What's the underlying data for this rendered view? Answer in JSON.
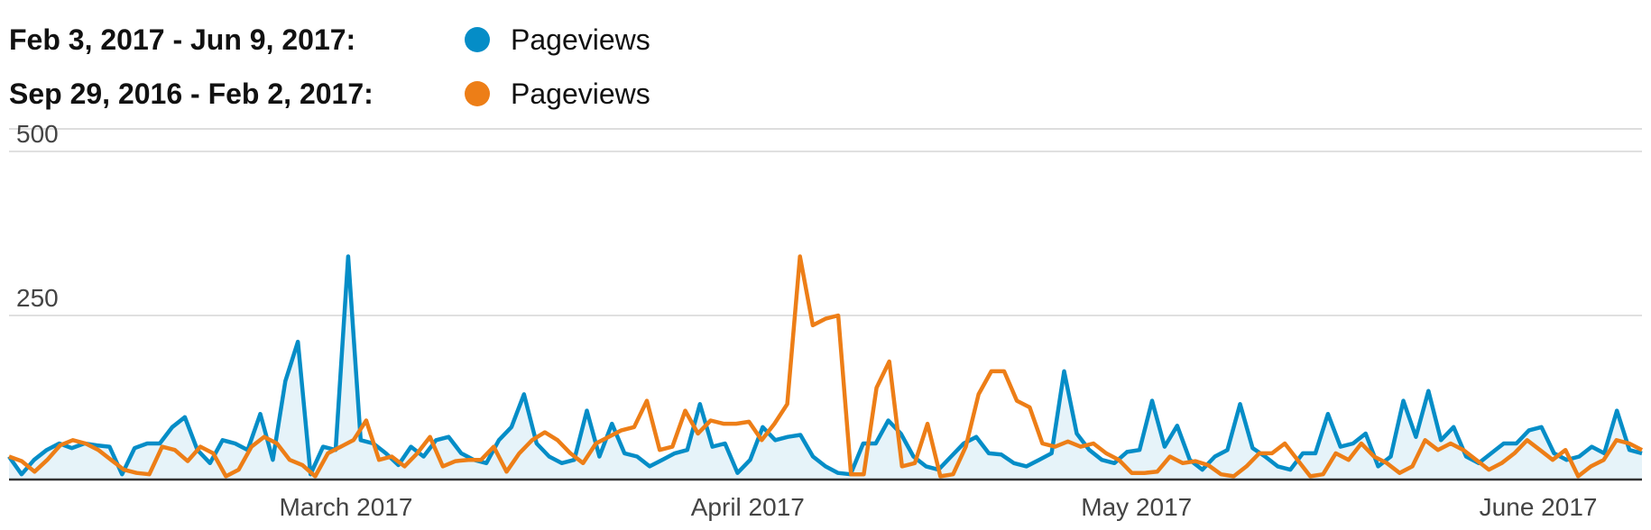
{
  "legend": {
    "rows": [
      {
        "range": "Feb 3, 2017 - Jun 9, 2017:",
        "series": "Pageviews",
        "color": "#058dc7"
      },
      {
        "range": "Sep 29, 2016 - Feb 2, 2017:",
        "series": "Pageviews",
        "color": "#ed7e17"
      }
    ]
  },
  "chart_data": {
    "type": "line",
    "y_ticks": [
      "500",
      "250"
    ],
    "ylim": [
      0,
      500
    ],
    "x_labels": [
      "March 2017",
      "April 2017",
      "May 2017",
      "June 2017"
    ],
    "x_label_dates": [
      "2017-03-01",
      "2017-04-01",
      "2017-05-01",
      "2017-06-01"
    ],
    "x_range": [
      "2017-02-03",
      "2017-06-09"
    ],
    "grid": true,
    "series": [
      {
        "name": "Pageviews",
        "range": "Feb 3, 2017 - Jun 9, 2017",
        "color": "#058dc7",
        "area": true,
        "values": [
          35,
          8,
          30,
          45,
          55,
          48,
          55,
          52,
          50,
          8,
          48,
          55,
          55,
          80,
          95,
          45,
          25,
          60,
          55,
          45,
          100,
          30,
          150,
          210,
          8,
          50,
          45,
          340,
          60,
          55,
          40,
          22,
          50,
          35,
          60,
          65,
          40,
          30,
          25,
          60,
          80,
          130,
          55,
          35,
          25,
          30,
          105,
          35,
          85,
          40,
          35,
          20,
          30,
          40,
          45,
          115,
          50,
          55,
          10,
          30,
          80,
          60,
          65,
          68,
          35,
          20,
          10,
          8,
          55,
          55,
          90,
          70,
          35,
          20,
          15,
          35,
          55,
          65,
          40,
          38,
          25,
          20,
          30,
          40,
          165,
          70,
          45,
          30,
          25,
          42,
          45,
          120,
          50,
          82,
          30,
          15,
          35,
          45,
          115,
          48,
          35,
          20,
          15,
          40,
          40,
          100,
          50,
          55,
          70,
          20,
          35,
          120,
          65,
          135,
          60,
          80,
          35,
          25,
          40,
          55,
          55,
          75,
          80,
          40,
          30,
          35,
          50,
          40,
          105,
          45,
          40
        ]
      },
      {
        "name": "Pageviews",
        "range": "Sep 29, 2016 - Feb 2, 2017",
        "color": "#ed7e17",
        "area": false,
        "values": [
          35,
          28,
          12,
          30,
          52,
          60,
          55,
          45,
          30,
          15,
          10,
          8,
          50,
          45,
          28,
          50,
          40,
          5,
          15,
          50,
          65,
          55,
          30,
          22,
          5,
          40,
          50,
          60,
          90,
          30,
          35,
          20,
          40,
          65,
          20,
          28,
          30,
          30,
          50,
          12,
          40,
          60,
          72,
          60,
          40,
          25,
          55,
          65,
          75,
          80,
          120,
          45,
          50,
          105,
          70,
          90,
          85,
          85,
          88,
          60,
          85,
          115,
          340,
          235,
          245,
          250,
          8,
          8,
          140,
          180,
          20,
          25,
          85,
          5,
          8,
          50,
          130,
          165,
          165,
          120,
          110,
          55,
          50,
          58,
          50,
          55,
          40,
          30,
          10,
          10,
          12,
          35,
          25,
          28,
          22,
          8,
          5,
          20,
          40,
          40,
          55,
          30,
          5,
          8,
          40,
          30,
          55,
          35,
          25,
          10,
          20,
          60,
          45,
          55,
          45,
          30,
          15,
          25,
          40,
          60,
          45,
          30,
          45,
          5,
          20,
          30,
          60,
          55,
          45
        ]
      }
    ]
  }
}
